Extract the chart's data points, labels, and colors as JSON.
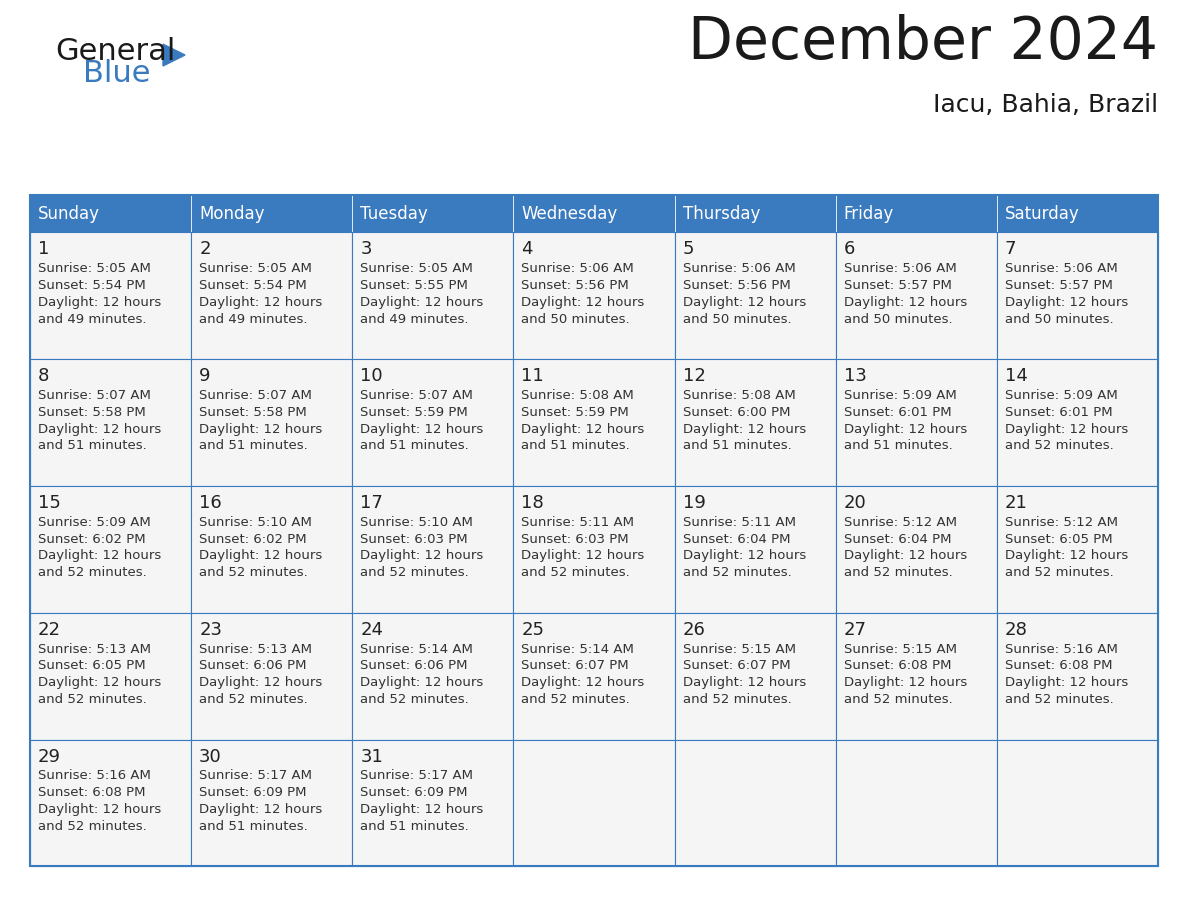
{
  "title": "December 2024",
  "subtitle": "Iacu, Bahia, Brazil",
  "days_of_week": [
    "Sunday",
    "Monday",
    "Tuesday",
    "Wednesday",
    "Thursday",
    "Friday",
    "Saturday"
  ],
  "header_bg": "#3a7abf",
  "header_text": "#ffffff",
  "cell_bg_light": "#f5f5f5",
  "cell_bg_white": "#ffffff",
  "border_color": "#3a7abf",
  "text_color": "#333333",
  "day_number_color": "#222222",
  "title_color": "#1a1a1a",
  "calendar_data": [
    [
      {
        "day": 1,
        "sunrise": "5:05 AM",
        "sunset": "5:54 PM",
        "daylight": "12 hours and 49 minutes."
      },
      {
        "day": 2,
        "sunrise": "5:05 AM",
        "sunset": "5:54 PM",
        "daylight": "12 hours and 49 minutes."
      },
      {
        "day": 3,
        "sunrise": "5:05 AM",
        "sunset": "5:55 PM",
        "daylight": "12 hours and 49 minutes."
      },
      {
        "day": 4,
        "sunrise": "5:06 AM",
        "sunset": "5:56 PM",
        "daylight": "12 hours and 50 minutes."
      },
      {
        "day": 5,
        "sunrise": "5:06 AM",
        "sunset": "5:56 PM",
        "daylight": "12 hours and 50 minutes."
      },
      {
        "day": 6,
        "sunrise": "5:06 AM",
        "sunset": "5:57 PM",
        "daylight": "12 hours and 50 minutes."
      },
      {
        "day": 7,
        "sunrise": "5:06 AM",
        "sunset": "5:57 PM",
        "daylight": "12 hours and 50 minutes."
      }
    ],
    [
      {
        "day": 8,
        "sunrise": "5:07 AM",
        "sunset": "5:58 PM",
        "daylight": "12 hours and 51 minutes."
      },
      {
        "day": 9,
        "sunrise": "5:07 AM",
        "sunset": "5:58 PM",
        "daylight": "12 hours and 51 minutes."
      },
      {
        "day": 10,
        "sunrise": "5:07 AM",
        "sunset": "5:59 PM",
        "daylight": "12 hours and 51 minutes."
      },
      {
        "day": 11,
        "sunrise": "5:08 AM",
        "sunset": "5:59 PM",
        "daylight": "12 hours and 51 minutes."
      },
      {
        "day": 12,
        "sunrise": "5:08 AM",
        "sunset": "6:00 PM",
        "daylight": "12 hours and 51 minutes."
      },
      {
        "day": 13,
        "sunrise": "5:09 AM",
        "sunset": "6:01 PM",
        "daylight": "12 hours and 51 minutes."
      },
      {
        "day": 14,
        "sunrise": "5:09 AM",
        "sunset": "6:01 PM",
        "daylight": "12 hours and 52 minutes."
      }
    ],
    [
      {
        "day": 15,
        "sunrise": "5:09 AM",
        "sunset": "6:02 PM",
        "daylight": "12 hours and 52 minutes."
      },
      {
        "day": 16,
        "sunrise": "5:10 AM",
        "sunset": "6:02 PM",
        "daylight": "12 hours and 52 minutes."
      },
      {
        "day": 17,
        "sunrise": "5:10 AM",
        "sunset": "6:03 PM",
        "daylight": "12 hours and 52 minutes."
      },
      {
        "day": 18,
        "sunrise": "5:11 AM",
        "sunset": "6:03 PM",
        "daylight": "12 hours and 52 minutes."
      },
      {
        "day": 19,
        "sunrise": "5:11 AM",
        "sunset": "6:04 PM",
        "daylight": "12 hours and 52 minutes."
      },
      {
        "day": 20,
        "sunrise": "5:12 AM",
        "sunset": "6:04 PM",
        "daylight": "12 hours and 52 minutes."
      },
      {
        "day": 21,
        "sunrise": "5:12 AM",
        "sunset": "6:05 PM",
        "daylight": "12 hours and 52 minutes."
      }
    ],
    [
      {
        "day": 22,
        "sunrise": "5:13 AM",
        "sunset": "6:05 PM",
        "daylight": "12 hours and 52 minutes."
      },
      {
        "day": 23,
        "sunrise": "5:13 AM",
        "sunset": "6:06 PM",
        "daylight": "12 hours and 52 minutes."
      },
      {
        "day": 24,
        "sunrise": "5:14 AM",
        "sunset": "6:06 PM",
        "daylight": "12 hours and 52 minutes."
      },
      {
        "day": 25,
        "sunrise": "5:14 AM",
        "sunset": "6:07 PM",
        "daylight": "12 hours and 52 minutes."
      },
      {
        "day": 26,
        "sunrise": "5:15 AM",
        "sunset": "6:07 PM",
        "daylight": "12 hours and 52 minutes."
      },
      {
        "day": 27,
        "sunrise": "5:15 AM",
        "sunset": "6:08 PM",
        "daylight": "12 hours and 52 minutes."
      },
      {
        "day": 28,
        "sunrise": "5:16 AM",
        "sunset": "6:08 PM",
        "daylight": "12 hours and 52 minutes."
      }
    ],
    [
      {
        "day": 29,
        "sunrise": "5:16 AM",
        "sunset": "6:08 PM",
        "daylight": "12 hours and 52 minutes."
      },
      {
        "day": 30,
        "sunrise": "5:17 AM",
        "sunset": "6:09 PM",
        "daylight": "12 hours and 51 minutes."
      },
      {
        "day": 31,
        "sunrise": "5:17 AM",
        "sunset": "6:09 PM",
        "daylight": "12 hours and 51 minutes."
      },
      null,
      null,
      null,
      null
    ]
  ],
  "logo_text1": "General",
  "logo_text2": "Blue",
  "logo_text1_color": "#1a1a1a",
  "logo_text2_color": "#3a7abf",
  "logo_triangle_color": "#3a7abf"
}
